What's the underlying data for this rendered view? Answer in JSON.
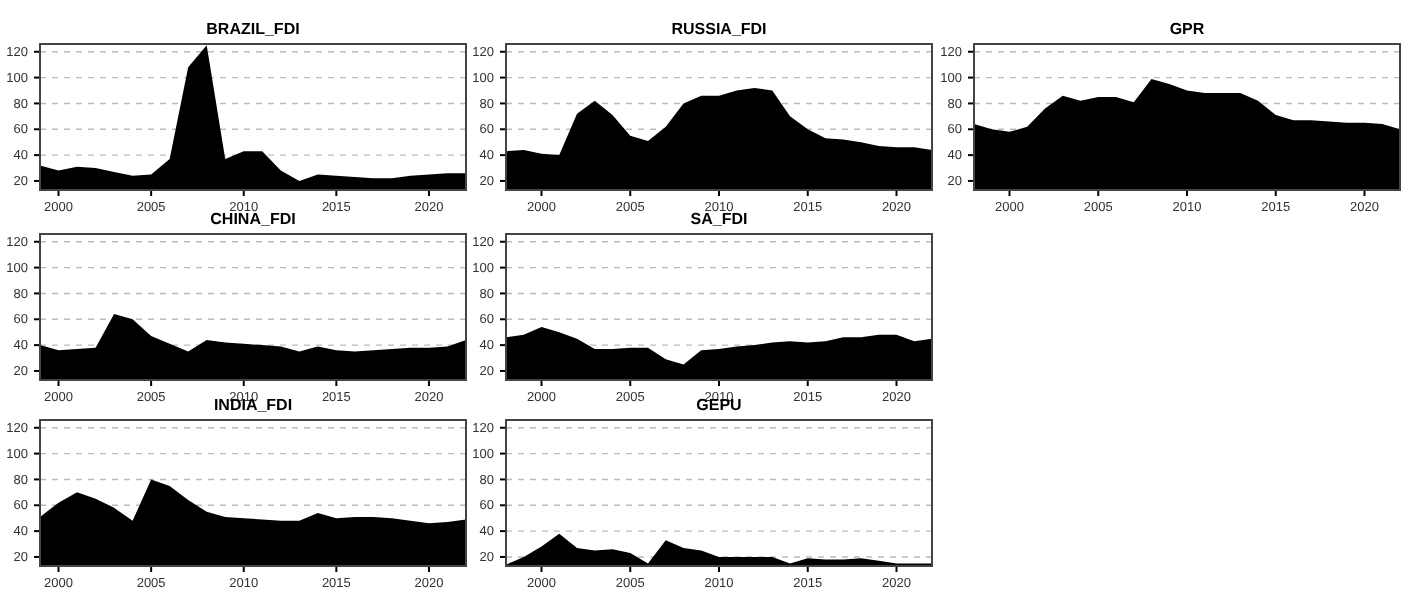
{
  "chart_data": [
    {
      "type": "area",
      "title": "BRAZIL_FDI",
      "x": [
        1999,
        2000,
        2001,
        2002,
        2003,
        2004,
        2005,
        2006,
        2007,
        2008,
        2009,
        2010,
        2011,
        2012,
        2013,
        2014,
        2015,
        2016,
        2017,
        2018,
        2019,
        2020,
        2021,
        2022
      ],
      "values": [
        32,
        28,
        31,
        30,
        27,
        24,
        25,
        37,
        108,
        125,
        37,
        43,
        43,
        28,
        20,
        25,
        24,
        23,
        22,
        22,
        24,
        25,
        26,
        26
      ],
      "color": "#000000",
      "xlim": [
        1999,
        2022
      ],
      "xticks": [
        2000,
        2005,
        2010,
        2015,
        2020
      ],
      "ylim": [
        13,
        126
      ],
      "yticks": [
        20,
        40,
        60,
        80,
        100,
        120
      ],
      "grid": "y"
    },
    {
      "type": "area",
      "title": "RUSSIA_FDI",
      "x": [
        1998,
        1999,
        2000,
        2001,
        2002,
        2003,
        2004,
        2005,
        2006,
        2007,
        2008,
        2009,
        2010,
        2011,
        2012,
        2013,
        2014,
        2015,
        2016,
        2017,
        2018,
        2019,
        2020,
        2021,
        2022
      ],
      "values": [
        43,
        44,
        41,
        40,
        72,
        82,
        71,
        55,
        51,
        62,
        80,
        86,
        86,
        90,
        92,
        90,
        70,
        60,
        53,
        52,
        50,
        47,
        46,
        46,
        44
      ],
      "color": "#000000",
      "xlim": [
        1998,
        2022
      ],
      "xticks": [
        2000,
        2005,
        2010,
        2015,
        2020
      ],
      "ylim": [
        13,
        126
      ],
      "yticks": [
        20,
        40,
        60,
        80,
        100,
        120
      ],
      "grid": "y"
    },
    {
      "type": "area",
      "title": "GPR",
      "x": [
        1998,
        1999,
        2000,
        2001,
        2002,
        2003,
        2004,
        2005,
        2006,
        2007,
        2008,
        2009,
        2010,
        2011,
        2012,
        2013,
        2014,
        2015,
        2016,
        2017,
        2018,
        2019,
        2020,
        2021,
        2022
      ],
      "values": [
        64,
        60,
        58,
        62,
        76,
        86,
        82,
        85,
        85,
        81,
        99,
        95,
        90,
        88,
        88,
        88,
        82,
        71,
        67,
        67,
        66,
        65,
        65,
        64,
        60
      ],
      "color": "#000000",
      "xlim": [
        1998,
        2022
      ],
      "xticks": [
        2000,
        2005,
        2010,
        2015,
        2020
      ],
      "ylim": [
        13,
        126
      ],
      "yticks": [
        20,
        40,
        60,
        80,
        100,
        120
      ],
      "grid": "y"
    },
    {
      "type": "area",
      "title": "CHINA_FDI",
      "x": [
        1999,
        2000,
        2001,
        2002,
        2003,
        2004,
        2005,
        2006,
        2007,
        2008,
        2009,
        2010,
        2011,
        2012,
        2013,
        2014,
        2015,
        2016,
        2017,
        2018,
        2019,
        2020,
        2021,
        2022
      ],
      "values": [
        40,
        36,
        37,
        38,
        64,
        60,
        47,
        41,
        35,
        44,
        42,
        41,
        40,
        39,
        35,
        39,
        36,
        35,
        36,
        37,
        38,
        38,
        39,
        44
      ],
      "color": "#000000",
      "xlim": [
        1999,
        2022
      ],
      "xticks": [
        2000,
        2005,
        2010,
        2015,
        2020
      ],
      "ylim": [
        13,
        126
      ],
      "yticks": [
        20,
        40,
        60,
        80,
        100,
        120
      ],
      "grid": "y"
    },
    {
      "type": "area",
      "title": "SA_FDI",
      "x": [
        1998,
        1999,
        2000,
        2001,
        2002,
        2003,
        2004,
        2005,
        2006,
        2007,
        2008,
        2009,
        2010,
        2011,
        2012,
        2013,
        2014,
        2015,
        2016,
        2017,
        2018,
        2019,
        2020,
        2021,
        2022
      ],
      "values": [
        46,
        48,
        54,
        50,
        45,
        37,
        37,
        38,
        38,
        29,
        25,
        36,
        37,
        39,
        40,
        42,
        43,
        42,
        43,
        46,
        46,
        48,
        48,
        43,
        45
      ],
      "color": "#000000",
      "xlim": [
        1998,
        2022
      ],
      "xticks": [
        2000,
        2005,
        2010,
        2015,
        2020
      ],
      "ylim": [
        13,
        126
      ],
      "yticks": [
        20,
        40,
        60,
        80,
        100,
        120
      ],
      "grid": "y"
    },
    {
      "type": "area",
      "title": "INDIA_FDI",
      "x": [
        1999,
        2000,
        2001,
        2002,
        2003,
        2004,
        2005,
        2006,
        2007,
        2008,
        2009,
        2010,
        2011,
        2012,
        2013,
        2014,
        2015,
        2016,
        2017,
        2018,
        2019,
        2020,
        2021,
        2022
      ],
      "values": [
        51,
        62,
        70,
        65,
        58,
        48,
        80,
        75,
        64,
        55,
        51,
        50,
        49,
        48,
        48,
        54,
        50,
        51,
        51,
        50,
        48,
        46,
        47,
        49
      ],
      "color": "#000000",
      "xlim": [
        1999,
        2022
      ],
      "xticks": [
        2000,
        2005,
        2010,
        2015,
        2020
      ],
      "ylim": [
        13,
        126
      ],
      "yticks": [
        20,
        40,
        60,
        80,
        100,
        120
      ],
      "grid": "y"
    },
    {
      "type": "area",
      "title": "GEPU",
      "x": [
        1998,
        1999,
        2000,
        2001,
        2002,
        2003,
        2004,
        2005,
        2006,
        2007,
        2008,
        2009,
        2010,
        2011,
        2012,
        2013,
        2014,
        2015,
        2016,
        2017,
        2018,
        2019,
        2020,
        2021,
        2022
      ],
      "values": [
        14,
        20,
        28,
        38,
        27,
        25,
        26,
        23,
        15,
        33,
        27,
        25,
        20,
        20,
        20,
        20,
        15,
        19,
        18,
        18,
        19,
        17,
        15,
        15,
        15
      ],
      "color": "#000000",
      "xlim": [
        1998,
        2022
      ],
      "xticks": [
        2000,
        2005,
        2010,
        2015,
        2020
      ],
      "ylim": [
        13,
        126
      ],
      "yticks": [
        20,
        40,
        60,
        80,
        100,
        120
      ],
      "grid": "y"
    }
  ]
}
